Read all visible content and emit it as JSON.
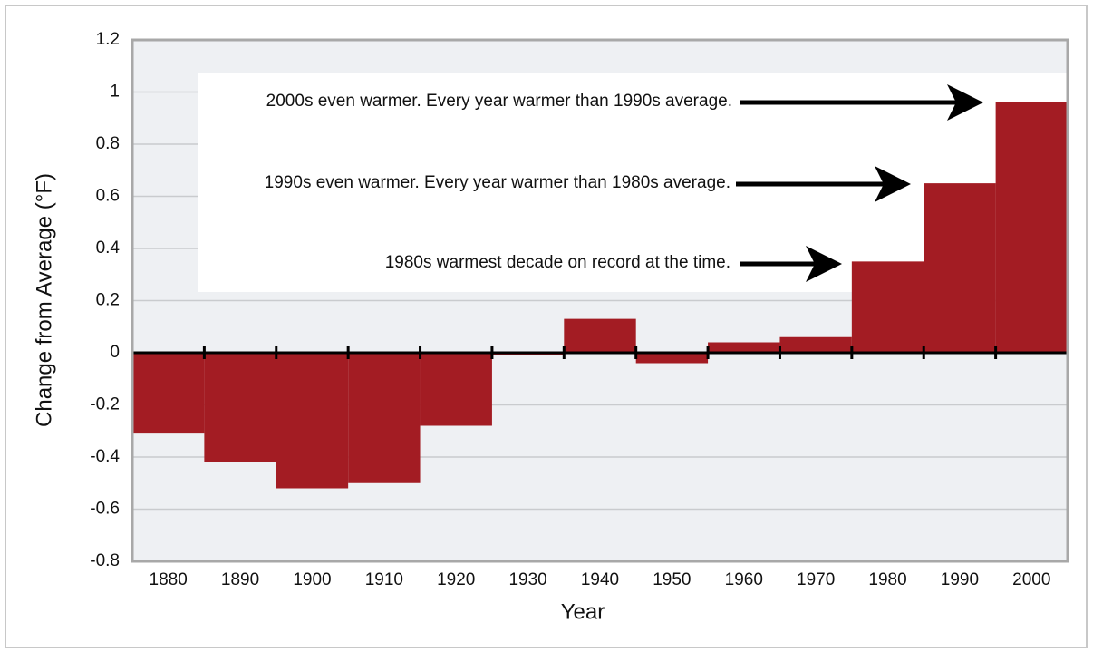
{
  "chart_data": {
    "type": "bar",
    "y_axis_label": "Change from Average (°F)",
    "x_axis_label": "Year",
    "categories": [
      "1880",
      "1890",
      "1900",
      "1910",
      "1920",
      "1930",
      "1940",
      "1950",
      "1960",
      "1970",
      "1980",
      "1990",
      "2000"
    ],
    "values": [
      -0.31,
      -0.42,
      -0.52,
      -0.5,
      -0.28,
      -0.01,
      0.13,
      -0.04,
      0.04,
      0.06,
      0.35,
      0.65,
      0.96
    ],
    "color": "#a31c23",
    "ylim": [
      -0.8,
      1.2
    ],
    "yticks": [
      1.2,
      1,
      0.8,
      0.6,
      0.4,
      0.2,
      0,
      -0.2,
      -0.4,
      -0.6,
      -0.8
    ],
    "grid": true,
    "annotations": [
      "2000s even warmer. Every year warmer than 1990s average.",
      "1990s even warmer. Every year warmer than 1980s average.",
      "1980s warmest decade on record at the time."
    ]
  }
}
